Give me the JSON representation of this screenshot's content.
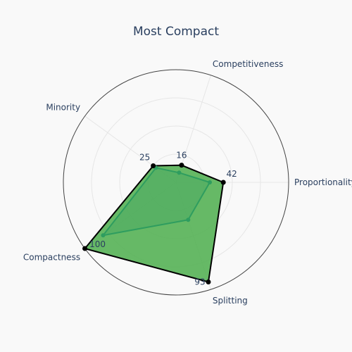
{
  "chart_data": {
    "type": "radar",
    "title": "Most Compact",
    "axes": [
      "Proportionality",
      "Competitiveness",
      "Minority",
      "Compactness",
      "Splitting"
    ],
    "rmax": 100,
    "grid": true,
    "series": [
      {
        "color": "#2ca02c",
        "fill": "#4cae4c",
        "line": "#000000",
        "values": [
          42,
          16,
          25,
          100,
          93
        ],
        "labels": [
          "42",
          "16",
          "25",
          "100",
          "93"
        ]
      },
      {
        "color": "#2e9d5f",
        "line": "#2e9d5f",
        "values": [
          30,
          9,
          22,
          80,
          35
        ]
      }
    ]
  }
}
